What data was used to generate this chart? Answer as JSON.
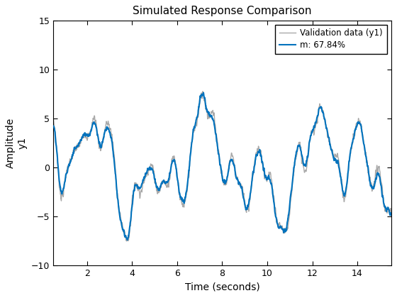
{
  "title": "Simulated Response Comparison",
  "xlabel": "Time (seconds)",
  "ylabel_amp": "Amplitude",
  "ylabel_y1": "y1",
  "legend_validation": "Validation data (y1)",
  "legend_model": "m: 67.84%",
  "xlim": [
    0.5,
    15.5
  ],
  "ylim": [
    -10,
    15
  ],
  "xticks": [
    2,
    4,
    6,
    8,
    10,
    12,
    14
  ],
  "yticks": [
    -10,
    -5,
    0,
    5,
    10,
    15
  ],
  "validation_color": "#aaaaaa",
  "model_color": "#0072BD",
  "validation_lw": 1.0,
  "model_lw": 1.5,
  "figsize": [
    5.6,
    4.2
  ],
  "dpi": 100,
  "bg_color": "#ffffff"
}
